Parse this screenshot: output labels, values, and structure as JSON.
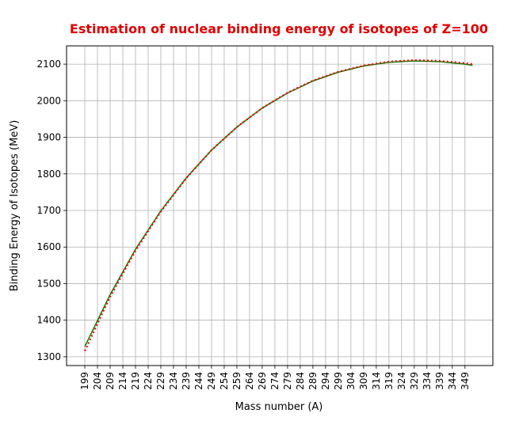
{
  "chart_data": {
    "type": "line",
    "title": "Estimation of nuclear binding energy of isotopes of Z=100",
    "xlabel": "Mass number (A)",
    "ylabel": "Binding Energy of Isotopes (MeV)",
    "x": [
      199,
      209,
      219,
      229,
      239,
      249,
      259,
      269,
      279,
      289,
      299,
      309,
      319,
      329,
      339,
      349,
      352
    ],
    "series": [
      {
        "color": "#008000",
        "style": "solid",
        "values": [
          1328,
          1470,
          1594,
          1699,
          1789,
          1865,
          1928,
          1980,
          2021,
          2054,
          2078,
          2095,
          2105,
          2109,
          2107,
          2100,
          2097
        ]
      },
      {
        "color": "#ff0000",
        "style": "dotted",
        "values": [
          1316,
          1464,
          1590,
          1697,
          1788,
          1865,
          1928,
          1980,
          2022,
          2055,
          2079,
          2096,
          2107,
          2111,
          2109,
          2103,
          2100
        ]
      }
    ],
    "xlim": [
      191.8,
      360
    ],
    "ylim": [
      1276,
      2150
    ],
    "xticks": [
      199,
      204,
      209,
      214,
      219,
      224,
      229,
      234,
      239,
      244,
      249,
      254,
      259,
      264,
      269,
      274,
      279,
      284,
      289,
      294,
      299,
      304,
      309,
      314,
      319,
      324,
      329,
      334,
      339,
      344,
      349
    ],
    "yticks": [
      1300,
      1400,
      1500,
      1600,
      1700,
      1800,
      1900,
      2000,
      2100
    ],
    "grid": true
  }
}
